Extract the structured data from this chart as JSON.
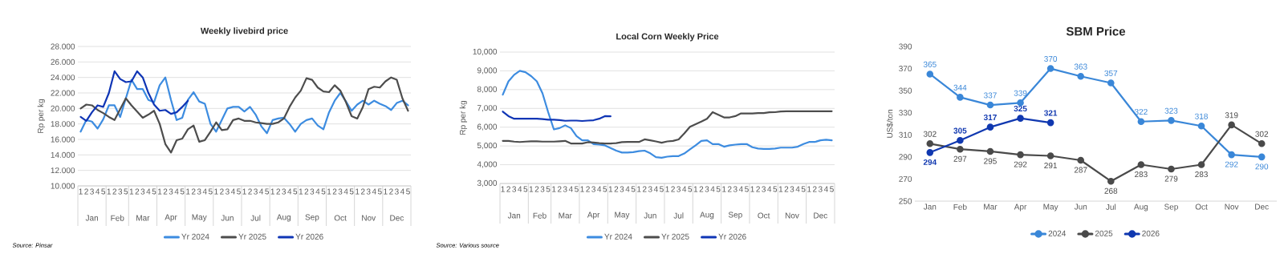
{
  "chart_data": [
    {
      "type": "line",
      "title": "Weekly livebird price",
      "ylabel": "Rp per kg",
      "categories": [
        "1",
        "2",
        "3",
        "4",
        "5",
        "1",
        "2",
        "3",
        "5",
        "1",
        "2",
        "3",
        "4",
        "5",
        "1",
        "2",
        "3",
        "4",
        "5",
        "1",
        "2",
        "3",
        "4",
        "5",
        "1",
        "2",
        "3",
        "4",
        "5",
        "1",
        "2",
        "3",
        "4",
        "5",
        "1",
        "2",
        "3",
        "4",
        "5",
        "1",
        "2",
        "3",
        "4",
        "5",
        "1",
        "2",
        "3",
        "4",
        "5",
        "1",
        "2",
        "3",
        "4",
        "5",
        "1",
        "2",
        "3",
        "4",
        "5"
      ],
      "series": [
        {
          "name": "Yr 2024",
          "color": "#3d8ce0",
          "values": [
            17.0,
            18.5,
            18.3,
            17.4,
            18.6,
            20.4,
            20.4,
            18.9,
            21.3,
            23.7,
            22.5,
            22.5,
            21.1,
            20.8,
            23.0,
            24.0,
            21.1,
            18.5,
            18.8,
            21.1,
            22.1,
            20.9,
            20.6,
            18.0,
            17.0,
            18.5,
            20.0,
            20.2,
            20.2,
            19.6,
            20.2,
            19.2,
            17.7,
            16.8,
            18.5,
            18.7,
            18.8,
            18.0,
            17.0,
            18.0,
            18.5,
            18.7,
            17.8,
            17.3,
            19.5,
            21.0,
            22.0,
            20.9,
            19.7,
            20.5,
            21.0,
            20.5,
            21.0,
            20.6,
            20.3,
            19.8,
            20.7,
            21.0,
            20.4
          ]
        },
        {
          "name": "Yr 2025",
          "color": "#4d4d4d",
          "values": [
            20.0,
            20.5,
            20.4,
            19.8,
            19.4,
            18.9,
            18.5,
            19.9,
            21.3,
            20.4,
            19.6,
            18.8,
            19.2,
            19.7,
            18.0,
            15.4,
            14.3,
            15.9,
            16.1,
            17.3,
            17.8,
            15.7,
            15.9,
            17.0,
            18.2,
            17.2,
            17.3,
            18.5,
            18.7,
            18.4,
            18.4,
            18.2,
            18.1,
            18.0,
            18.0,
            18.2,
            18.7,
            20.2,
            21.4,
            22.3,
            23.9,
            23.7,
            22.7,
            22.2,
            22.1,
            23.0,
            22.3,
            20.8,
            19.0,
            18.7,
            20.2,
            22.5,
            22.8,
            22.7,
            23.5,
            24.0,
            23.7,
            21.3,
            19.7
          ]
        },
        {
          "name": "Yr 2026",
          "color": "#0f35b5",
          "values": [
            18.9,
            18.4,
            19.5,
            20.4,
            20.2,
            22.0,
            24.8,
            23.8,
            23.4,
            23.5,
            24.8,
            24.0,
            22.0,
            20.5,
            19.7,
            19.8,
            19.3,
            19.5,
            20.2,
            21.0,
            null,
            null,
            null,
            null,
            null,
            null,
            null,
            null,
            null,
            null,
            null,
            null,
            null,
            null,
            null,
            null,
            null,
            null,
            null,
            null,
            null,
            null,
            null,
            null,
            null,
            null,
            null,
            null,
            null,
            null,
            null,
            null,
            null,
            null,
            null,
            null,
            null,
            null,
            null
          ]
        }
      ],
      "ylim": [
        10,
        28
      ],
      "yticks": [
        {
          "value": 10,
          "label": "10.000"
        },
        {
          "value": 12,
          "label": "12.000"
        },
        {
          "value": 14,
          "label": "14.000"
        },
        {
          "value": 16,
          "label": "16.000"
        },
        {
          "value": 18,
          "label": "18.000"
        },
        {
          "value": 20,
          "label": "20.000"
        },
        {
          "value": 22,
          "label": "22.000"
        },
        {
          "value": 24,
          "label": "24.000"
        },
        {
          "value": 26,
          "label": "26.000"
        },
        {
          "value": 28,
          "label": "28.000"
        }
      ],
      "grid": "y",
      "legend": "bottom",
      "annotations": [
        "Jan",
        "Feb",
        "Mar",
        "Apr",
        "May",
        "Jun",
        "Jul",
        "Aug",
        "Sep",
        "Oct",
        "Nov",
        "Dec",
        "Source: Pinsar"
      ]
    },
    {
      "type": "line",
      "title": "Local Corn Weekly Price",
      "ylabel": "Rp per kg",
      "categories": [
        "1",
        "2",
        "3",
        "4",
        "5",
        "1",
        "2",
        "3",
        "5",
        "1",
        "2",
        "3",
        "4",
        "5",
        "1",
        "2",
        "3",
        "4",
        "5",
        "1",
        "2",
        "3",
        "4",
        "5",
        "1",
        "2",
        "3",
        "4",
        "5",
        "1",
        "2",
        "3",
        "4",
        "5",
        "1",
        "2",
        "3",
        "4",
        "5",
        "1",
        "2",
        "3",
        "4",
        "5",
        "1",
        "2",
        "3",
        "4",
        "5",
        "1",
        "2",
        "3",
        "4",
        "5",
        "1",
        "2",
        "3",
        "4",
        "5"
      ],
      "series": [
        {
          "name": "Yr 2024",
          "color": "#3d8ce0",
          "values": [
            7730,
            8440,
            8790,
            9000,
            8930,
            8720,
            8440,
            7800,
            6800,
            5880,
            5950,
            6100,
            5950,
            5520,
            5300,
            5300,
            5100,
            5070,
            5030,
            4890,
            4750,
            4650,
            4650,
            4670,
            4720,
            4750,
            4610,
            4400,
            4370,
            4430,
            4460,
            4460,
            4600,
            4820,
            5030,
            5270,
            5300,
            5100,
            5100,
            4960,
            5030,
            5070,
            5100,
            5100,
            4930,
            4860,
            4840,
            4840,
            4860,
            4910,
            4910,
            4910,
            4960,
            5100,
            5210,
            5210,
            5300,
            5330,
            5300
          ]
        },
        {
          "name": "Yr 2025",
          "color": "#4d4d4d",
          "values": [
            5270,
            5270,
            5230,
            5210,
            5230,
            5250,
            5250,
            5230,
            5230,
            5230,
            5250,
            5270,
            5130,
            5130,
            5130,
            5200,
            5180,
            5150,
            5130,
            5130,
            5150,
            5200,
            5210,
            5210,
            5210,
            5350,
            5300,
            5240,
            5170,
            5240,
            5270,
            5350,
            5670,
            6020,
            6160,
            6300,
            6450,
            6800,
            6660,
            6520,
            6520,
            6590,
            6730,
            6730,
            6730,
            6750,
            6750,
            6790,
            6800,
            6840,
            6850,
            6850,
            6850,
            6850,
            6850,
            6850,
            6850,
            6850,
            6850
          ]
        },
        {
          "name": "Yr 2026",
          "color": "#0f35b5",
          "values": [
            6830,
            6590,
            6450,
            6450,
            6450,
            6450,
            6450,
            6430,
            6400,
            6400,
            6380,
            6340,
            6350,
            6350,
            6330,
            6350,
            6370,
            6450,
            6590,
            6580,
            null,
            null,
            null,
            null,
            null,
            null,
            null,
            null,
            null,
            null,
            null,
            null,
            null,
            null,
            null,
            null,
            null,
            null,
            null,
            null,
            null,
            null,
            null,
            null,
            null,
            null,
            null,
            null,
            null,
            null,
            null,
            null,
            null,
            null,
            null,
            null,
            null,
            null,
            null
          ]
        }
      ],
      "ylim": [
        3000,
        10000
      ],
      "yticks": [
        {
          "value": 3000,
          "label": "3,000"
        },
        {
          "value": 4000,
          "label": "4,000"
        },
        {
          "value": 5000,
          "label": "5,000"
        },
        {
          "value": 6000,
          "label": "6,000"
        },
        {
          "value": 7000,
          "label": "7,000"
        },
        {
          "value": 8000,
          "label": "8,000"
        },
        {
          "value": 9000,
          "label": "9,000"
        },
        {
          "value": 10000,
          "label": "10,000"
        }
      ],
      "grid": "y",
      "legend": "bottom",
      "annotations": [
        "Jan",
        "Feb",
        "Mar",
        "Apr",
        "May",
        "Jun",
        "Jul",
        "Aug",
        "Sep",
        "Oct",
        "Nov",
        "Dec",
        "Source: Various source"
      ]
    },
    {
      "type": "line",
      "title": "SBM Price",
      "ylabel": "US$/ton",
      "categories": [
        "Jan",
        "Feb",
        "Mar",
        "Apr",
        "May",
        "Jun",
        "Jul",
        "Aug",
        "Sep",
        "Oct",
        "Nov",
        "Dec"
      ],
      "series": [
        {
          "name": "2024",
          "color": "#3a87d8",
          "values": [
            365,
            344,
            337,
            339,
            370,
            363,
            357,
            322,
            323,
            318,
            292,
            290
          ]
        },
        {
          "name": "2025",
          "color": "#4a4a4a",
          "values": [
            302,
            297,
            295,
            292,
            291,
            287,
            268,
            283,
            279,
            283,
            319,
            302
          ]
        },
        {
          "name": "2026",
          "color": "#1038b0",
          "values": [
            294,
            305,
            317,
            325,
            321,
            null,
            null,
            null,
            null,
            null,
            null,
            null
          ]
        }
      ],
      "ylim": [
        250,
        390
      ],
      "yticks": [
        250,
        270,
        290,
        310,
        330,
        350,
        370,
        390
      ],
      "data_labels": true,
      "marker": "circle",
      "legend": "bottom"
    }
  ]
}
